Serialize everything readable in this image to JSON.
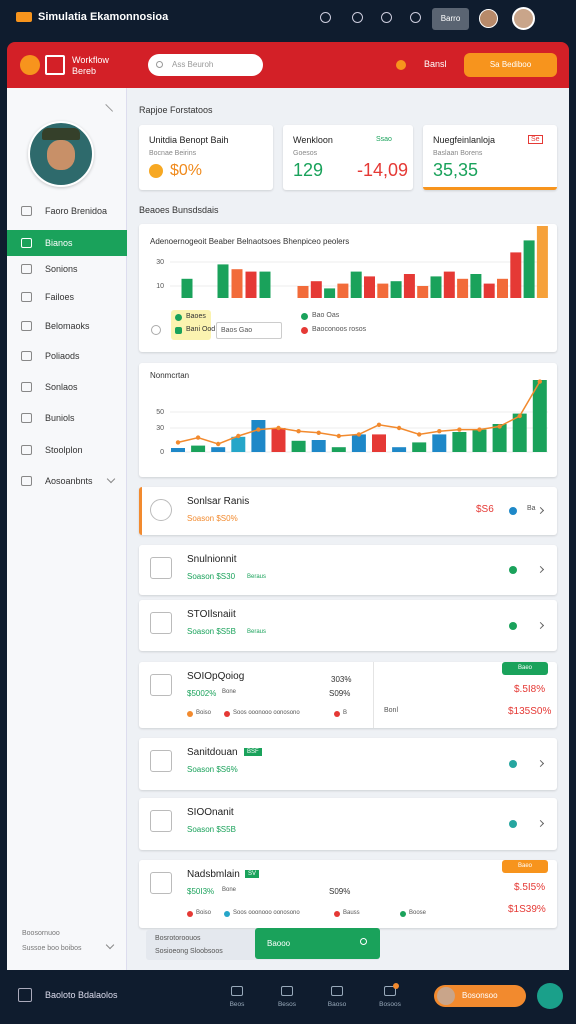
{
  "topbar": {
    "brand": "Simulatia Ekamonnosioa",
    "button": "Barro"
  },
  "header": {
    "logo_line1": "Workflow",
    "logo_line2": "Bereb",
    "search": "Ass Beuroh",
    "link": "Bansl",
    "button": "Sa Bediboo"
  },
  "sidebar": {
    "menu": [
      "Faoro Brenidoa",
      "Bianos",
      "Sonions",
      "Failoes",
      "Belomaoks",
      "Poliaods",
      "Sonlaos",
      "Buniols",
      "Stoolplon",
      "Aosoanbnts"
    ],
    "footer": [
      "Boosornuoo",
      "Sussoe boo boibos"
    ]
  },
  "section1": "Rapjoe Forstatoos",
  "cards": [
    {
      "title": "Unitdia Benopt Baih",
      "subtitle": "Bocnae Beirins",
      "value": "$0%"
    },
    {
      "title": "Wenkloon",
      "badge": "Ssao",
      "subtitle": "Goesos",
      "value": "129",
      "value2": "-14,09"
    },
    {
      "title": "Nuegfeinlanloja",
      "badge": "Se",
      "subtitle": "Baslaan Borens",
      "value": "35,35"
    }
  ],
  "section2": "Beaoes Bunsdsdais",
  "charts": [
    {
      "type": "bar",
      "title": "Adenoernogeoit Beaber Belnaotsoes Bhenpiceo peolers",
      "ylim": [
        0,
        60
      ],
      "yticks": [
        10,
        30
      ],
      "values": [
        16,
        28,
        24,
        22,
        22,
        10,
        14,
        8,
        12,
        22,
        18,
        12,
        14,
        20,
        10,
        18,
        22,
        16,
        20,
        12,
        16,
        38,
        48,
        60
      ],
      "colors": [
        "#1aa25b",
        "#1aa25b",
        "#f26b3a",
        "#e53935",
        "#1aa25b",
        "#f26b3a",
        "#e53935",
        "#1aa25b",
        "#f26b3a",
        "#1aa25b",
        "#e53935",
        "#f26b3a",
        "#1aa25b",
        "#e53935",
        "#f26b3a",
        "#1aa25b",
        "#e53935",
        "#f26b3a",
        "#1aa25b",
        "#e53935",
        "#f26b3a",
        "#e53935",
        "#1aa25b",
        "#f6a13a"
      ],
      "legend": [
        "Baoes",
        "Bani Ood",
        "Baos Gao",
        "Bao Oas",
        "Baoconoos rosos"
      ]
    },
    {
      "type": "bar-line",
      "title": "Nonmcrtan",
      "ylim": [
        0,
        100
      ],
      "yticks": [
        0,
        30,
        50
      ],
      "values": [
        5,
        8,
        6,
        19,
        40,
        30,
        14,
        15,
        6,
        22,
        22,
        6,
        12,
        22,
        25,
        28,
        35,
        48,
        90
      ],
      "colors": [
        "#1e88c8",
        "#1aa25b",
        "#1e88c8",
        "#26a6c9",
        "#1e88c8",
        "#e53935",
        "#1aa25b",
        "#1e88c8",
        "#1aa25b",
        "#1e88c8",
        "#e53935",
        "#1e88c8",
        "#1aa25b",
        "#1e88c8",
        "#1aa25b",
        "#1aa25b",
        "#1aa25b",
        "#1aa25b",
        "#1aa25b"
      ],
      "line": [
        12,
        18,
        10,
        20,
        28,
        30,
        26,
        24,
        20,
        22,
        34,
        30,
        22,
        26,
        28,
        28,
        32,
        45,
        88
      ]
    }
  ],
  "list": [
    {
      "title": "Sonlsar Ranis",
      "sub": "Soason $S0%",
      "amount": "$S6",
      "tag": "Ba"
    },
    {
      "title": "Snulnionnit",
      "sub": "Soason $S30",
      "note": "Beraus"
    },
    {
      "title": "STOIlsnaiit",
      "sub": "Soason $S5B",
      "note": "Beraus"
    },
    {
      "title": "SOIOpQoiog",
      "sub": "$5002%",
      "note": "Bone",
      "p1": "303%",
      "p2": "S09%",
      "legend": [
        "Boiso",
        "Soos ooonooo oonosono",
        "B"
      ],
      "badge": "Baeo",
      "r1": "$.5I8%",
      "label": "Bonl",
      "r2": "$135S0%"
    },
    {
      "title": "Sanitdouan",
      "badge": "BSF",
      "sub": "Soason $S6%"
    },
    {
      "title": "SIOOnanit",
      "sub": "Soason $S5B"
    },
    {
      "title": "Nadsbmlain",
      "badge2": "SV",
      "sub": "$50I3%",
      "note": "Bone",
      "p2": "S09%",
      "legend": [
        "Boiso",
        "Soos ooonooo oonosono",
        "Bauss",
        "Boose"
      ],
      "badge": "Baeo",
      "r1": "$.5I5%",
      "r2": "$1S39%"
    }
  ],
  "search": {
    "line1": "Bosrotoroouos",
    "line2": "Sosioeong Sloobsoos",
    "button": "Baooo"
  },
  "bottombar": {
    "title": "Baoloto Bdalaolos",
    "nav": [
      "Beos",
      "Besos",
      "Baoso",
      "Bosoos"
    ],
    "button": "Bosonsoo"
  }
}
